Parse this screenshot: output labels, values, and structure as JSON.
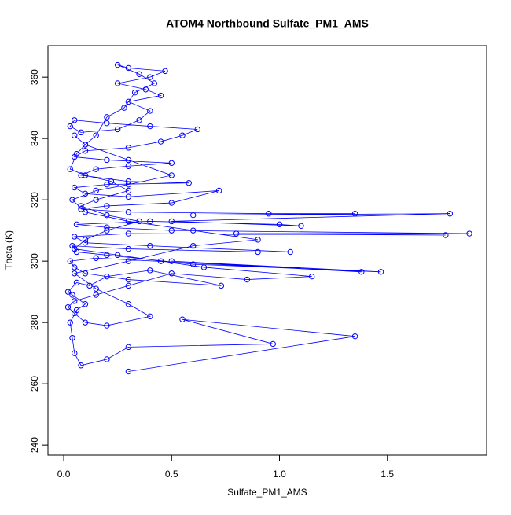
{
  "chart_data": {
    "type": "scatter",
    "connect": true,
    "title": "ATOM4 Northbound Sulfate_PM1_AMS",
    "x_label": "Sulfate_PM1_AMS",
    "y_label": "Theta (K)",
    "color": "#0000ff",
    "xlim": [
      -0.073,
      1.96
    ],
    "ylim": [
      236.7,
      370.3
    ],
    "xticks": [
      {
        "value": 0,
        "label": "0.0"
      },
      0.5,
      {
        "value": 1,
        "label": "1.0"
      },
      1.5
    ],
    "yticks": [
      240,
      260,
      280,
      300,
      320,
      340,
      360
    ],
    "x": [
      0.3,
      1.35,
      0.55,
      0.97,
      0.3,
      0.2,
      0.08,
      0.05,
      0.04,
      0.03,
      0.06,
      0.1,
      0.04,
      0.02,
      0.06,
      0.12,
      0.2,
      0.4,
      0.73,
      0.3,
      0.1,
      0.05,
      0.03,
      0.15,
      1.38,
      0.5,
      1.47,
      0.6,
      0.2,
      0.06,
      0.04,
      0.3,
      0.9,
      1.05,
      0.4,
      0.1,
      0.05,
      0.3,
      1.77,
      0.8,
      1.88,
      0.5,
      0.2,
      0.06,
      0.4,
      1.0,
      1.1,
      0.5,
      1.79,
      0.6,
      1.35,
      0.95,
      0.3,
      0.08,
      0.2,
      0.5,
      0.72,
      0.3,
      0.1,
      0.05,
      0.2,
      0.58,
      0.3,
      0.08,
      0.15,
      0.3,
      0.5,
      0.2,
      0.05,
      0.1,
      0.3,
      0.45,
      0.55,
      0.62,
      0.4,
      0.2,
      0.05,
      0.03,
      0.08,
      0.25,
      0.35,
      0.4,
      0.3,
      0.45,
      0.38,
      0.25,
      0.4,
      0.47,
      0.3,
      0.25,
      0.35,
      0.42,
      0.33,
      0.28,
      0.2,
      0.15,
      0.1,
      0.06,
      0.03,
      0.1,
      0.22,
      0.3,
      0.15,
      0.08,
      0.2,
      0.35,
      0.2,
      0.1,
      0.05,
      0.25,
      0.45,
      0.65,
      1.15,
      0.85,
      0.5,
      0.3,
      0.15,
      0.05,
      0.02,
      0.05,
      0.1,
      0.2,
      0.4,
      0.3,
      0.15,
      0.05,
      0.3,
      0.6,
      0.9,
      0.6,
      0.3,
      0.1,
      0.04,
      0.15,
      0.3,
      0.5,
      0.3,
      0.1,
      0.05
    ],
    "y": [
      264,
      275.5,
      281,
      273,
      272,
      268,
      266,
      270,
      275,
      280,
      284,
      286,
      289,
      290,
      293,
      292,
      295,
      297,
      292,
      294,
      296,
      298,
      300,
      301,
      296.5,
      300,
      296.5,
      299,
      302,
      303,
      305,
      304,
      303,
      303,
      305,
      306,
      308,
      309,
      308.5,
      309,
      309,
      310,
      311,
      312,
      313,
      312,
      311.5,
      313,
      315.5,
      315,
      315.5,
      315.5,
      316,
      317,
      318,
      319,
      323,
      321,
      322,
      324,
      325,
      325.5,
      326,
      328,
      330,
      331,
      332,
      333,
      334,
      336,
      337,
      339,
      341,
      343,
      344,
      345,
      346,
      344,
      342,
      343,
      346,
      349,
      352,
      354,
      356,
      358,
      360,
      362,
      363,
      364,
      361,
      358,
      355,
      350,
      347,
      341,
      338,
      335,
      330,
      328,
      326,
      323,
      320,
      318,
      315,
      313,
      310,
      307,
      304,
      302,
      300,
      298,
      295,
      294,
      296,
      292,
      289,
      287,
      285,
      283,
      280,
      279,
      282,
      286,
      291,
      296,
      300,
      305,
      307,
      310,
      313,
      316,
      320,
      323,
      325,
      328,
      333,
      338,
      341
    ]
  }
}
